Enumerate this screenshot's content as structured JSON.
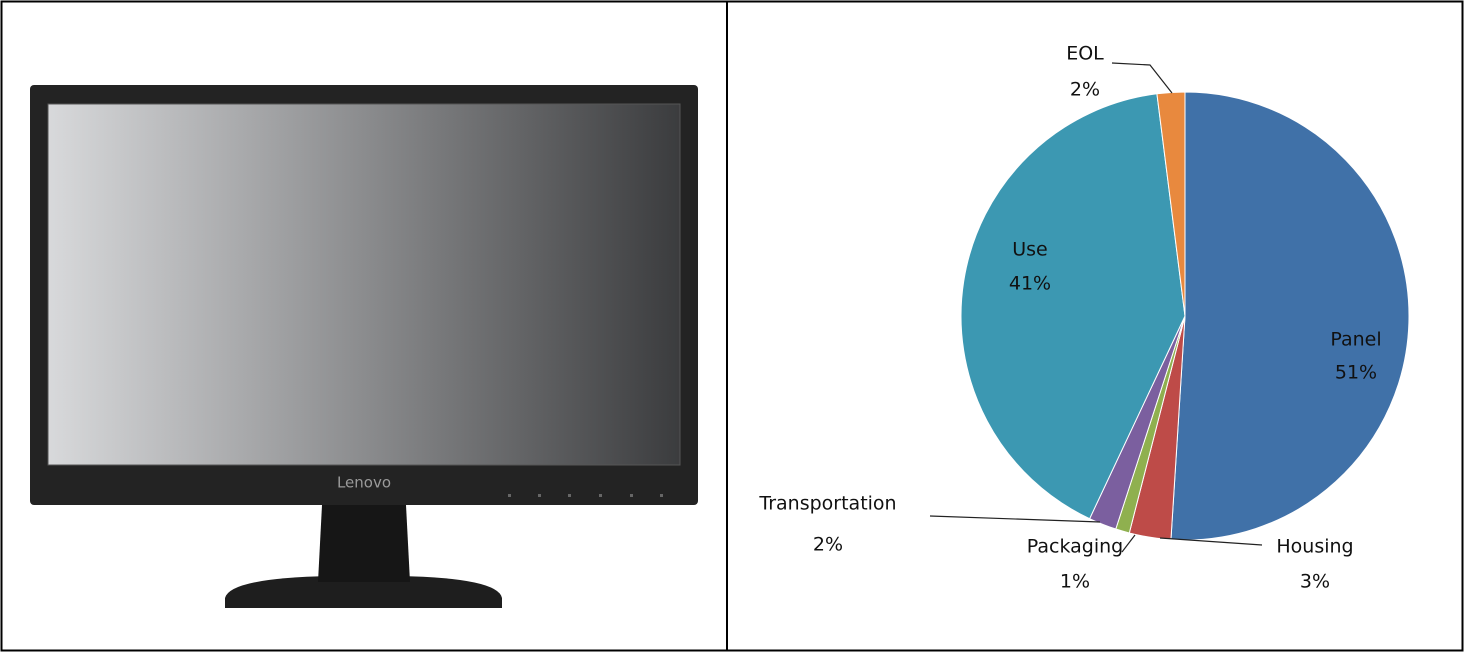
{
  "monitor": {
    "brand": "Lenovo"
  },
  "chart_data": {
    "type": "pie",
    "categories": [
      "Panel",
      "Housing",
      "Packaging",
      "Transportation",
      "Use",
      "EOL"
    ],
    "values": [
      51,
      3,
      1,
      2,
      41,
      2
    ],
    "value_labels": [
      "51%",
      "3%",
      "1%",
      "2%",
      "41%",
      "2%"
    ],
    "colors": [
      "#4071a8",
      "#be4b48",
      "#8fb04f",
      "#7b5f9f",
      "#3c98b2",
      "#e8893e"
    ]
  }
}
